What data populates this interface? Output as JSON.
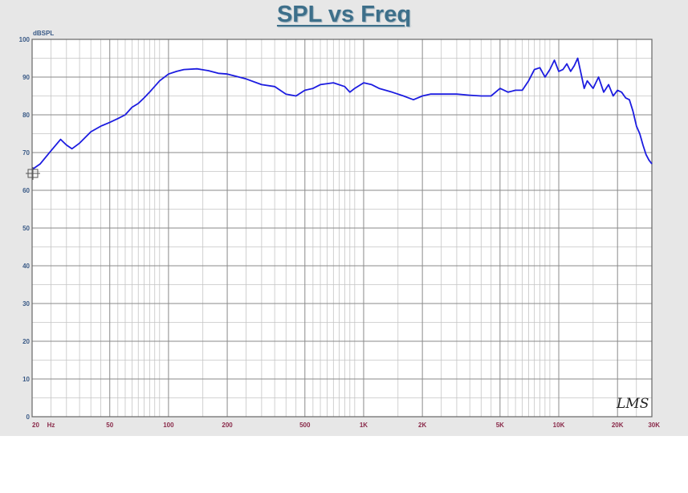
{
  "chart_data": {
    "type": "line",
    "title": "SPL vs Freq",
    "ylabel": "dBSPL",
    "xlabel": "",
    "x_scale": "log",
    "xlim": [
      20,
      30000
    ],
    "ylim": [
      0,
      100
    ],
    "grid": true,
    "watermark": "LMS",
    "y_ticks": [
      {
        "value": 0,
        "label": "0"
      },
      {
        "value": 10,
        "label": "10"
      },
      {
        "value": 20,
        "label": "20"
      },
      {
        "value": 30,
        "label": "30"
      },
      {
        "value": 40,
        "label": "40"
      },
      {
        "value": 50,
        "label": "50"
      },
      {
        "value": 60,
        "label": "60"
      },
      {
        "value": 70,
        "label": "70"
      },
      {
        "value": 80,
        "label": "80"
      },
      {
        "value": 90,
        "label": "90"
      },
      {
        "value": 100,
        "label": "100"
      }
    ],
    "x_ticks": [
      {
        "value": 20,
        "label": "20"
      },
      {
        "value": 25,
        "label": "Hz"
      },
      {
        "value": 50,
        "label": "50"
      },
      {
        "value": 100,
        "label": "100"
      },
      {
        "value": 200,
        "label": "200"
      },
      {
        "value": 500,
        "label": "500"
      },
      {
        "value": 1000,
        "label": "1K"
      },
      {
        "value": 2000,
        "label": "2K"
      },
      {
        "value": 5000,
        "label": "5K"
      },
      {
        "value": 10000,
        "label": "10K"
      },
      {
        "value": 20000,
        "label": "20K"
      },
      {
        "value": 30000,
        "label": "30K"
      }
    ],
    "series": [
      {
        "color": "#1c1ce0",
        "x": [
          20,
          22,
          25,
          28,
          30,
          32,
          35,
          40,
          45,
          50,
          55,
          60,
          65,
          70,
          75,
          80,
          90,
          100,
          110,
          120,
          140,
          160,
          180,
          200,
          250,
          300,
          350,
          400,
          450,
          500,
          550,
          600,
          700,
          800,
          850,
          900,
          1000,
          1100,
          1200,
          1400,
          1600,
          1800,
          2000,
          2200,
          2500,
          3000,
          3500,
          4000,
          4500,
          5000,
          5500,
          6000,
          6500,
          7000,
          7500,
          8000,
          8500,
          9000,
          9500,
          10000,
          10500,
          11000,
          11500,
          12000,
          12500,
          13000,
          13500,
          14000,
          15000,
          16000,
          17000,
          18000,
          19000,
          20000,
          21000,
          22000,
          23000,
          24000,
          25000,
          26000,
          27000,
          28000,
          29000,
          30000
        ],
        "y": [
          65.5,
          67,
          70.5,
          73.5,
          72,
          71,
          72.5,
          75.5,
          77,
          78,
          79,
          80,
          82,
          83,
          84.5,
          86,
          89,
          90.8,
          91.5,
          92,
          92.2,
          91.7,
          91,
          90.8,
          89.5,
          88,
          87.5,
          85.5,
          85,
          86.5,
          87,
          88,
          88.5,
          87.5,
          86,
          87,
          88.5,
          88,
          87,
          86,
          85,
          84,
          85,
          85.5,
          85.5,
          85.5,
          85.2,
          85,
          85,
          87,
          86,
          86.5,
          86.5,
          89,
          92,
          92.5,
          90,
          92,
          94.5,
          91.5,
          92,
          93.5,
          91.5,
          93,
          95,
          91,
          87,
          89,
          87,
          90,
          86,
          88,
          85,
          86.5,
          86,
          84.5,
          84,
          81,
          77,
          75,
          72,
          69.5,
          68,
          67
        ]
      }
    ]
  }
}
